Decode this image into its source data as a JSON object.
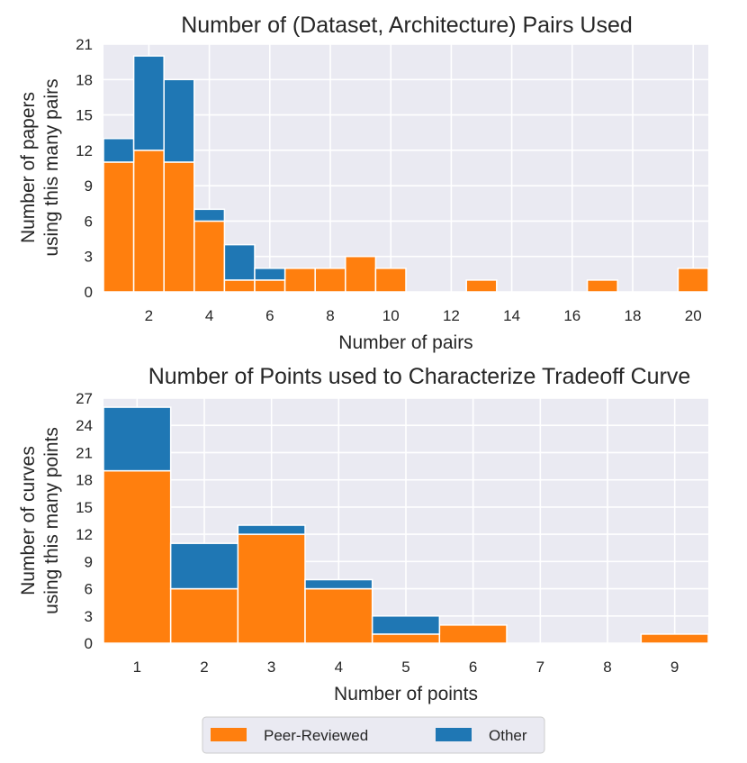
{
  "chart_data": [
    {
      "type": "bar",
      "stacked": true,
      "title": "Number of (Dataset, Architecture) Pairs Used",
      "xlabel": "Number of pairs",
      "ylabel": [
        "Number of papers",
        "using this many pairs"
      ],
      "xlim": [
        0.5,
        20.5
      ],
      "ylim": [
        0,
        21
      ],
      "xticks": [
        2,
        4,
        6,
        8,
        10,
        12,
        14,
        16,
        18,
        20
      ],
      "yticks": [
        0,
        3,
        6,
        9,
        12,
        15,
        18,
        21
      ],
      "x": [
        1,
        2,
        3,
        4,
        5,
        6,
        7,
        8,
        9,
        10,
        11,
        12,
        13,
        14,
        15,
        16,
        17,
        18,
        19,
        20
      ],
      "series": [
        {
          "name": "Peer-Reviewed",
          "color": "#ff7f0e",
          "values": [
            11,
            12,
            11,
            6,
            1,
            1,
            2,
            2,
            3,
            2,
            0,
            0,
            1,
            0,
            0,
            0,
            1,
            0,
            0,
            2
          ]
        },
        {
          "name": "Other",
          "color": "#1f77b4",
          "values": [
            2,
            8,
            7,
            1,
            3,
            1,
            0,
            0,
            0,
            0,
            0,
            0,
            0,
            0,
            0,
            0,
            0,
            0,
            0,
            0
          ]
        }
      ]
    },
    {
      "type": "bar",
      "stacked": true,
      "title": "Number of Points used to Characterize Tradeoff Curve",
      "xlabel": "Number of points",
      "ylabel": [
        "Number of curves",
        "using this many points"
      ],
      "xlim": [
        0.5,
        9.5
      ],
      "ylim": [
        0,
        27
      ],
      "xticks": [
        1,
        2,
        3,
        4,
        5,
        6,
        7,
        8,
        9
      ],
      "yticks": [
        0,
        3,
        6,
        9,
        12,
        15,
        18,
        21,
        24,
        27
      ],
      "x": [
        1,
        2,
        3,
        4,
        5,
        6,
        7,
        8,
        9
      ],
      "series": [
        {
          "name": "Peer-Reviewed",
          "color": "#ff7f0e",
          "values": [
            19,
            6,
            12,
            6,
            1,
            2,
            0,
            0,
            1
          ]
        },
        {
          "name": "Other",
          "color": "#1f77b4",
          "values": [
            7,
            5,
            1,
            1,
            2,
            0,
            0,
            0,
            0
          ]
        }
      ]
    }
  ],
  "legend": {
    "position": "bottom-center",
    "items": [
      {
        "label": "Peer-Reviewed",
        "color": "#ff7f0e"
      },
      {
        "label": "Other",
        "color": "#1f77b4"
      }
    ]
  }
}
